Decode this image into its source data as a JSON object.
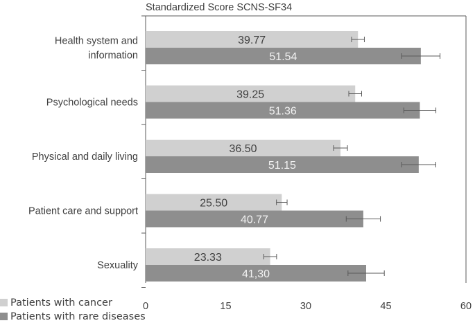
{
  "chart_data": {
    "type": "bar",
    "orientation": "horizontal",
    "title": "Standardized Score SCNS-SF34",
    "xlim": [
      0,
      60
    ],
    "xticks": [
      "0",
      "15",
      "30",
      "45",
      "60"
    ],
    "categories": [
      "Health system and information",
      "Psychological needs",
      "Physical and daily living",
      "Patient care and support",
      "Sexuality"
    ],
    "category_lines": [
      [
        "Health system and",
        "information"
      ],
      [
        "Psychological needs"
      ],
      [
        "Physical and daily living"
      ],
      [
        "Patient care and support"
      ],
      [
        "Sexuality"
      ]
    ],
    "series": [
      {
        "name": "Patients with cancer",
        "values": [
          39.77,
          39.25,
          36.5,
          25.5,
          23.33
        ],
        "labels": [
          "39.77",
          "39.25",
          "36.50",
          "25.50",
          "23.33"
        ],
        "error": [
          1.2,
          1.2,
          1.3,
          1.0,
          1.2
        ],
        "color": "#d0d0d0"
      },
      {
        "name": "Patients with rare diseases",
        "values": [
          51.54,
          51.36,
          51.15,
          40.77,
          41.3
        ],
        "labels": [
          "51.54",
          "51.36",
          "51.15",
          "40.77",
          "41,30"
        ],
        "error": [
          3.6,
          3.0,
          3.2,
          3.2,
          3.4
        ],
        "color": "#8e8e8e"
      }
    ],
    "grid": false,
    "legend_position": "bottom-left"
  }
}
